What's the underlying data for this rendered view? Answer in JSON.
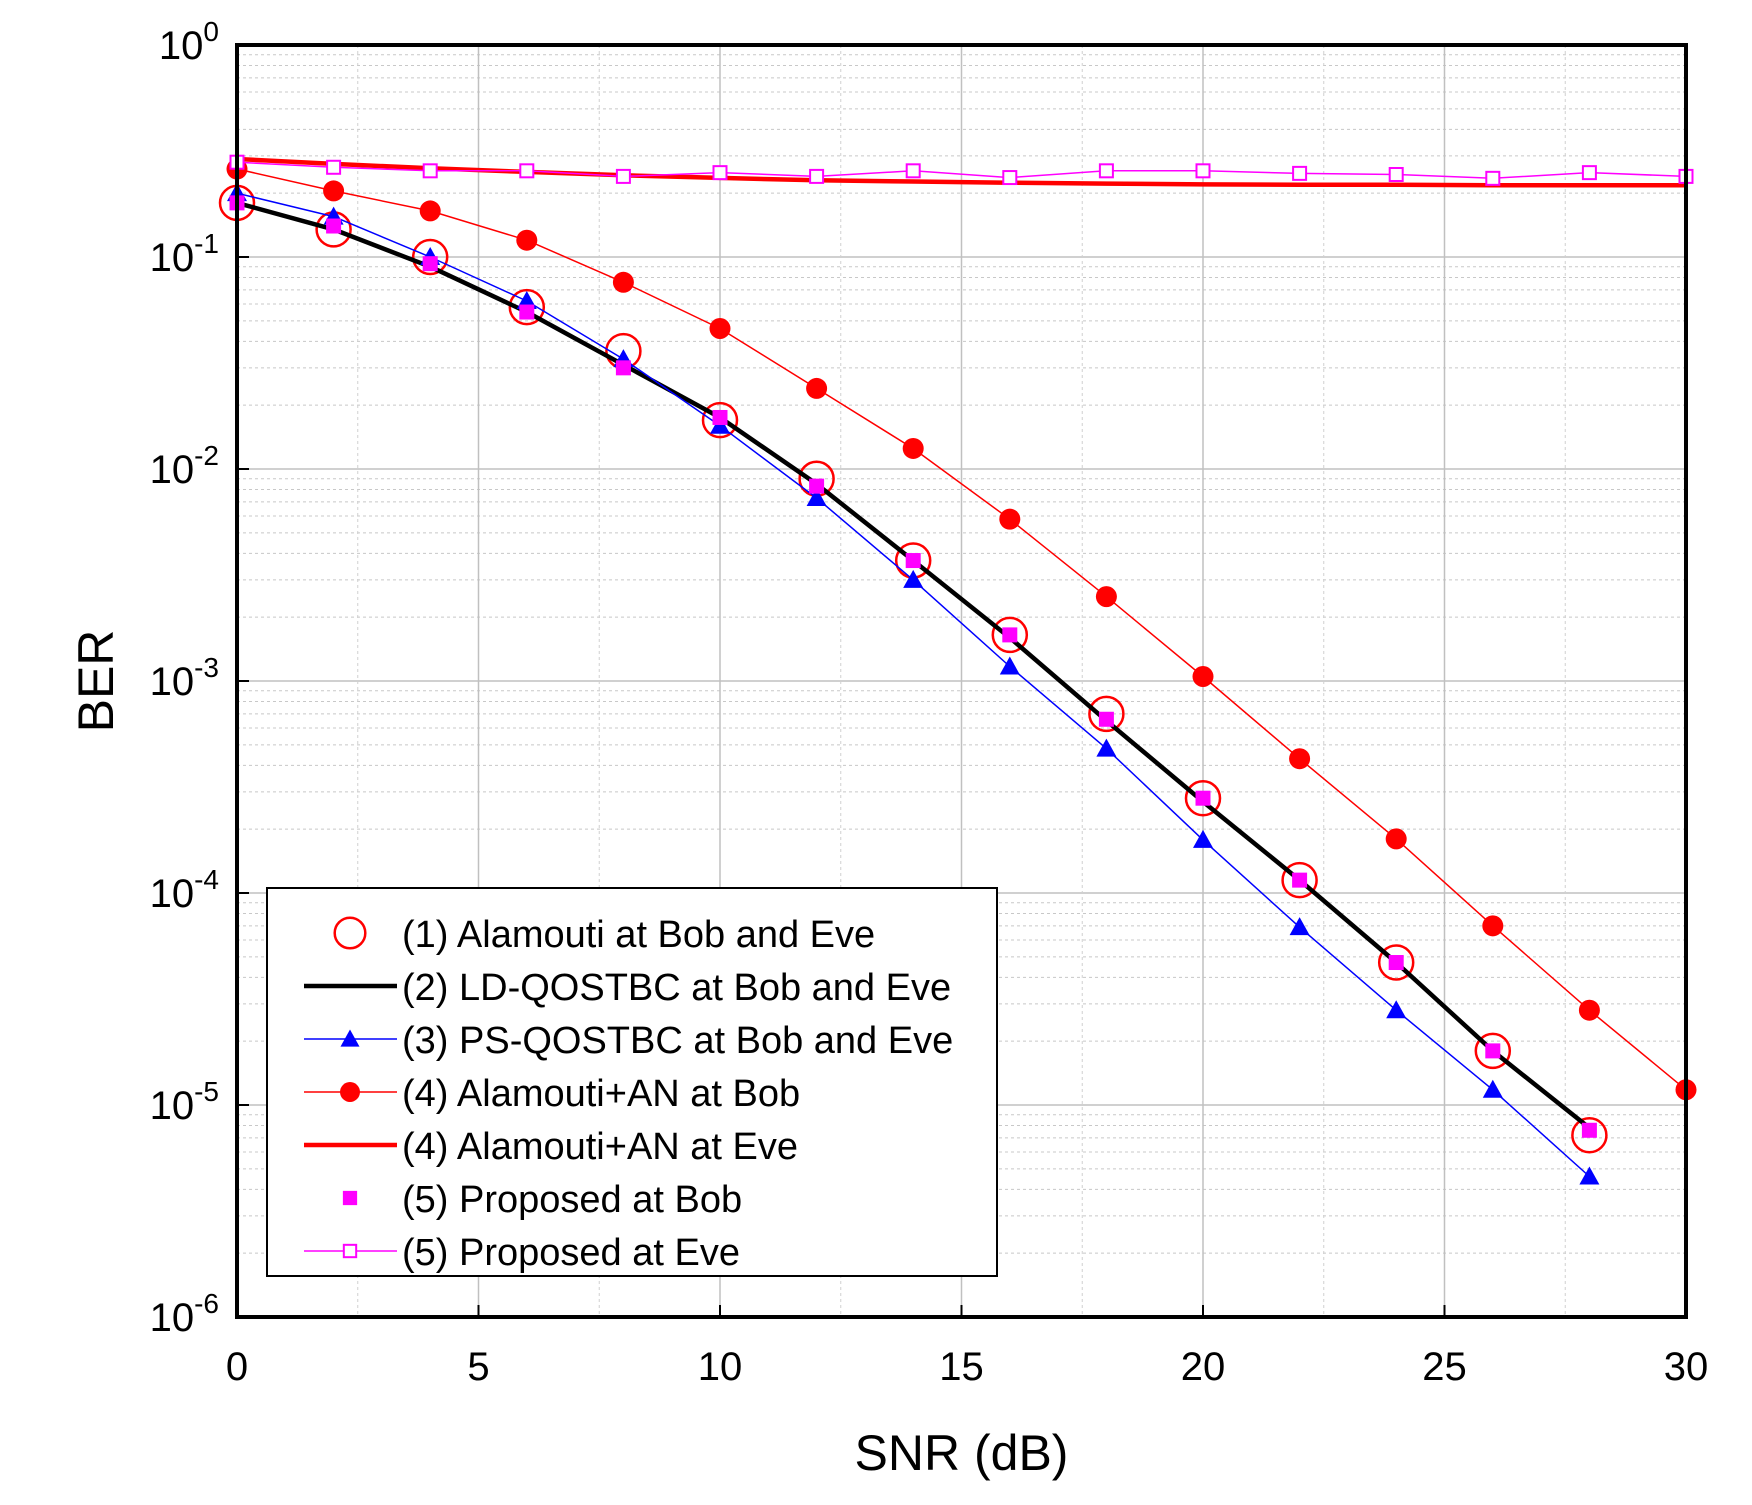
{
  "chart_data": {
    "type": "line",
    "xlabel": "SNR (dB)",
    "ylabel": "BER",
    "xlim": [
      0,
      30
    ],
    "ylim": [
      1e-06,
      1
    ],
    "yscale": "log",
    "grid": true,
    "x_ticks": [
      "0",
      "5",
      "10",
      "15",
      "20",
      "25",
      "30"
    ],
    "y_ticks": [
      {
        "base": "10",
        "exp": "0"
      },
      {
        "base": "10",
        "exp": "-1"
      },
      {
        "base": "10",
        "exp": "-2"
      },
      {
        "base": "10",
        "exp": "-3"
      },
      {
        "base": "10",
        "exp": "-4"
      },
      {
        "base": "10",
        "exp": "-5"
      },
      {
        "base": "10",
        "exp": "-6"
      }
    ],
    "legend_position": "lower-left",
    "series": [
      {
        "name": "(1) Alamouti at Bob and Eve",
        "color": "#ff0000",
        "line": "none",
        "marker": "circle-open",
        "x": [
          0,
          2,
          4,
          6,
          8,
          10,
          12,
          14,
          16,
          18,
          20,
          22,
          24,
          26,
          28
        ],
        "y": [
          0.18,
          0.135,
          0.1,
          0.058,
          0.036,
          0.017,
          0.009,
          0.0037,
          0.00165,
          0.0007,
          0.00028,
          0.000115,
          4.7e-05,
          1.8e-05,
          7.2e-06
        ]
      },
      {
        "name": "(2) LD-QOSTBC at Bob and Eve",
        "color": "#000000",
        "line": "solid-thick",
        "marker": "none",
        "x": [
          0,
          2,
          4,
          6,
          8,
          10,
          12,
          14,
          16,
          18,
          20,
          22,
          24,
          26,
          28
        ],
        "y": [
          0.18,
          0.135,
          0.09,
          0.055,
          0.031,
          0.0175,
          0.0085,
          0.0037,
          0.0016,
          0.00065,
          0.00027,
          0.000115,
          4.7e-05,
          1.8e-05,
          7.8e-06
        ]
      },
      {
        "name": "(3) PS-QOSTBC at Bob and Eve",
        "color": "#0000ff",
        "line": "solid-thin",
        "marker": "triangle",
        "x": [
          0,
          2,
          4,
          6,
          8,
          10,
          12,
          14,
          16,
          18,
          20,
          22,
          24,
          26,
          28
        ],
        "y": [
          0.2,
          0.155,
          0.1,
          0.062,
          0.033,
          0.016,
          0.0073,
          0.003,
          0.00117,
          0.00048,
          0.000178,
          6.9e-05,
          2.8e-05,
          1.18e-05,
          4.6e-06
        ]
      },
      {
        "name": "(4) Alamouti+AN at Bob",
        "color": "#ff0000",
        "line": "solid-thin",
        "marker": "circle-filled",
        "x": [
          0,
          2,
          4,
          6,
          8,
          10,
          12,
          14,
          16,
          18,
          20,
          22,
          24,
          26,
          28,
          30
        ],
        "y": [
          0.26,
          0.205,
          0.165,
          0.12,
          0.076,
          0.046,
          0.024,
          0.0125,
          0.0058,
          0.0025,
          0.00105,
          0.00043,
          0.00018,
          7e-05,
          2.8e-05,
          1.18e-05
        ]
      },
      {
        "name": "(4) Alamouti+AN at Eve",
        "color": "#ff0000",
        "line": "solid-thick",
        "marker": "none",
        "x": [
          0,
          2,
          4,
          6,
          8,
          10,
          12,
          14,
          16,
          18,
          20,
          22,
          24,
          26,
          28,
          30
        ],
        "y": [
          0.29,
          0.275,
          0.262,
          0.252,
          0.243,
          0.236,
          0.23,
          0.227,
          0.224,
          0.222,
          0.22,
          0.219,
          0.219,
          0.218,
          0.218,
          0.218
        ]
      },
      {
        "name": "(5) Proposed at Bob",
        "color": "#ff00ff",
        "line": "none",
        "marker": "square-filled",
        "x": [
          0,
          2,
          4,
          6,
          8,
          10,
          12,
          14,
          16,
          18,
          20,
          22,
          24,
          26,
          28
        ],
        "y": [
          0.18,
          0.14,
          0.093,
          0.055,
          0.03,
          0.0175,
          0.0083,
          0.0037,
          0.00165,
          0.00066,
          0.00028,
          0.000115,
          4.7e-05,
          1.8e-05,
          7.6e-06
        ]
      },
      {
        "name": "(5) Proposed at Eve",
        "color": "#ff00ff",
        "line": "solid-thin",
        "marker": "square-open",
        "x": [
          0,
          2,
          4,
          6,
          8,
          10,
          12,
          14,
          16,
          18,
          20,
          22,
          24,
          26,
          28,
          30
        ],
        "y": [
          0.28,
          0.265,
          0.255,
          0.255,
          0.24,
          0.25,
          0.24,
          0.255,
          0.237,
          0.255,
          0.255,
          0.248,
          0.245,
          0.235,
          0.25,
          0.24
        ]
      }
    ]
  }
}
